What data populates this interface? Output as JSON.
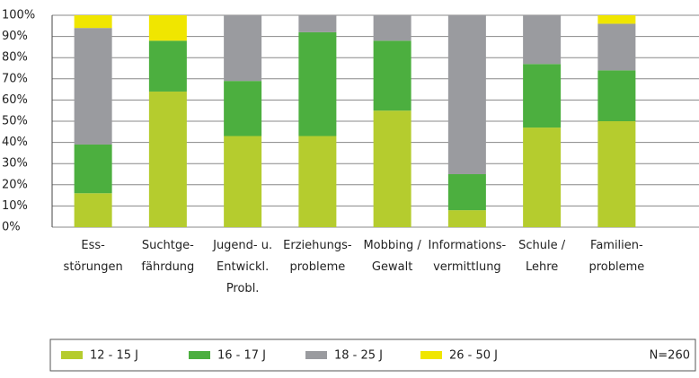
{
  "chart_data": {
    "type": "stacked_bar",
    "categories": [
      "Ess-\nstörungen",
      "Suchtge-\nfährdung",
      "Jugend- u.\nEntwickl.\nProbl.",
      "Erziehungs-\nprobleme",
      "Mobbing /\nGewalt",
      "Informations-\nvermittlung",
      "Schule /\nLehre",
      "Familien-\nprobleme"
    ],
    "series": [
      {
        "name": "12 - 15 J",
        "color": "#b5cc2e",
        "values": [
          16,
          64,
          43,
          43,
          55,
          8,
          47,
          50
        ]
      },
      {
        "name": "16 - 17 J",
        "color": "#4caf3f",
        "values": [
          23,
          24,
          26,
          49,
          33,
          17,
          30,
          24
        ]
      },
      {
        "name": "18 - 25 J",
        "color": "#9a9b9f",
        "values": [
          55,
          0,
          31,
          8,
          12,
          75,
          23,
          22
        ]
      },
      {
        "name": "26 - 50 J",
        "color": "#f0e600",
        "values": [
          6,
          12,
          0,
          0,
          0,
          0,
          0,
          4
        ]
      }
    ],
    "ylim": [
      0,
      100
    ],
    "yticks": [
      {
        "value": 0,
        "label": "0%"
      },
      {
        "value": 10,
        "label": "10%"
      },
      {
        "value": 20,
        "label": "20%"
      },
      {
        "value": 30,
        "label": "30%"
      },
      {
        "value": 40,
        "label": "40%"
      },
      {
        "value": 50,
        "label": "50%"
      },
      {
        "value": 60,
        "label": "60%"
      },
      {
        "value": 70,
        "label": "70%"
      },
      {
        "value": 80,
        "label": "80%"
      },
      {
        "value": 90,
        "label": "90%"
      },
      {
        "value": 100,
        "label": "100%"
      }
    ],
    "grid": true,
    "annotation": "N=260"
  }
}
